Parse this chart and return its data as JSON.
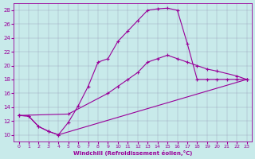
{
  "xlabel": "Windchill (Refroidissement éolien,°C)",
  "bg_color": "#c8eaea",
  "line_color": "#990099",
  "xlim": [
    -0.5,
    23.5
  ],
  "ylim": [
    9,
    29
  ],
  "xticks": [
    0,
    1,
    2,
    3,
    4,
    5,
    6,
    7,
    8,
    9,
    10,
    11,
    12,
    13,
    14,
    15,
    16,
    17,
    18,
    19,
    20,
    21,
    22,
    23
  ],
  "yticks": [
    10,
    12,
    14,
    16,
    18,
    20,
    22,
    24,
    26,
    28
  ],
  "curve1_x": [
    0,
    1,
    2,
    3,
    4,
    5,
    6,
    7,
    8,
    9,
    10,
    11,
    12,
    13,
    14,
    15,
    16,
    17,
    18,
    19,
    20,
    21,
    22,
    23
  ],
  "curve1_y": [
    12.8,
    12.7,
    11.2,
    10.5,
    10.0,
    11.8,
    14.2,
    17.0,
    20.5,
    21.0,
    23.5,
    25.0,
    26.5,
    28.0,
    28.2,
    28.3,
    28.0,
    23.2,
    18.0,
    18.0,
    18.0,
    18.0,
    18.0,
    18.0
  ],
  "curve2_x": [
    0,
    5,
    9,
    10,
    11,
    12,
    13,
    14,
    15,
    16,
    17,
    18,
    19,
    20,
    22,
    23
  ],
  "curve2_y": [
    12.8,
    13.0,
    16.0,
    17.0,
    18.0,
    19.0,
    20.5,
    21.0,
    21.5,
    21.0,
    20.5,
    20.0,
    19.5,
    19.2,
    18.5,
    18.0
  ],
  "curve3_x": [
    0,
    1,
    2,
    3,
    4,
    23
  ],
  "curve3_y": [
    12.8,
    12.7,
    11.2,
    10.5,
    10.0,
    18.0
  ]
}
